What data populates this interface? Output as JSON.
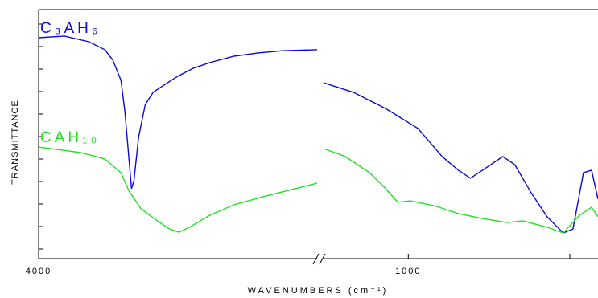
{
  "chart_data": {
    "type": "line",
    "y_label": "TRANSMITTANCE",
    "x_label": "WAVENUMBERS (cm⁻¹)",
    "ylim": [
      0,
      100
    ],
    "panels": [
      {
        "xlim": [
          4000,
          2600
        ],
        "xticks": [
          4000
        ]
      },
      {
        "xlim": [
          1262.5,
          412.5
        ],
        "xticks": [
          1000
        ]
      }
    ],
    "series": [
      {
        "name": "C₃AH₆",
        "color": "#0a0ad2",
        "x": [
          4000,
          3870,
          3748,
          3667,
          3627,
          3586,
          3566,
          3545,
          3533,
          3521,
          3497,
          3464,
          3424,
          3383,
          3302,
          3221,
          3140,
          3018,
          2896,
          2774,
          2600,
          null,
          1262.5,
          1170,
          1070,
          970,
          895,
          845,
          807.5,
          770,
          707.5,
          670,
          620,
          570,
          520,
          490,
          457.5,
          432.5,
          412.5
        ],
        "values": [
          88.7,
          89.4,
          87.1,
          83.9,
          79.7,
          71.6,
          58.7,
          39.4,
          28.1,
          31.3,
          49.0,
          61.9,
          66.8,
          69.0,
          73.2,
          76.5,
          78.7,
          81.3,
          82.6,
          83.5,
          83.9,
          null,
          70.6,
          66.8,
          60.3,
          52.3,
          41.0,
          35.5,
          32.3,
          35.5,
          41.0,
          37.7,
          26.5,
          16.8,
          10.3,
          11.9,
          34.5,
          35.5,
          23.9
        ]
      },
      {
        "name": "CAH₁₀",
        "color": "#22e022",
        "x": [
          4000,
          3789,
          3667,
          3586,
          3545,
          3485,
          3403,
          3343,
          3294,
          3241,
          3140,
          3018,
          2856,
          2600,
          null,
          1262.5,
          1195,
          1120,
          1070,
          1032.5,
          995,
          920,
          845,
          770,
          695,
          645,
          570,
          520,
          470,
          432.5,
          412.5
        ],
        "values": [
          44.8,
          42.6,
          40.0,
          34.5,
          27.1,
          20.0,
          15.2,
          11.9,
          10.6,
          12.6,
          17.4,
          21.6,
          25.2,
          30.3,
          null,
          44.2,
          41.0,
          34.5,
          28.1,
          22.6,
          23.2,
          21.3,
          18.1,
          16.1,
          14.5,
          15.2,
          12.6,
          10.3,
          17.4,
          20.6,
          16.8
        ]
      }
    ]
  }
}
